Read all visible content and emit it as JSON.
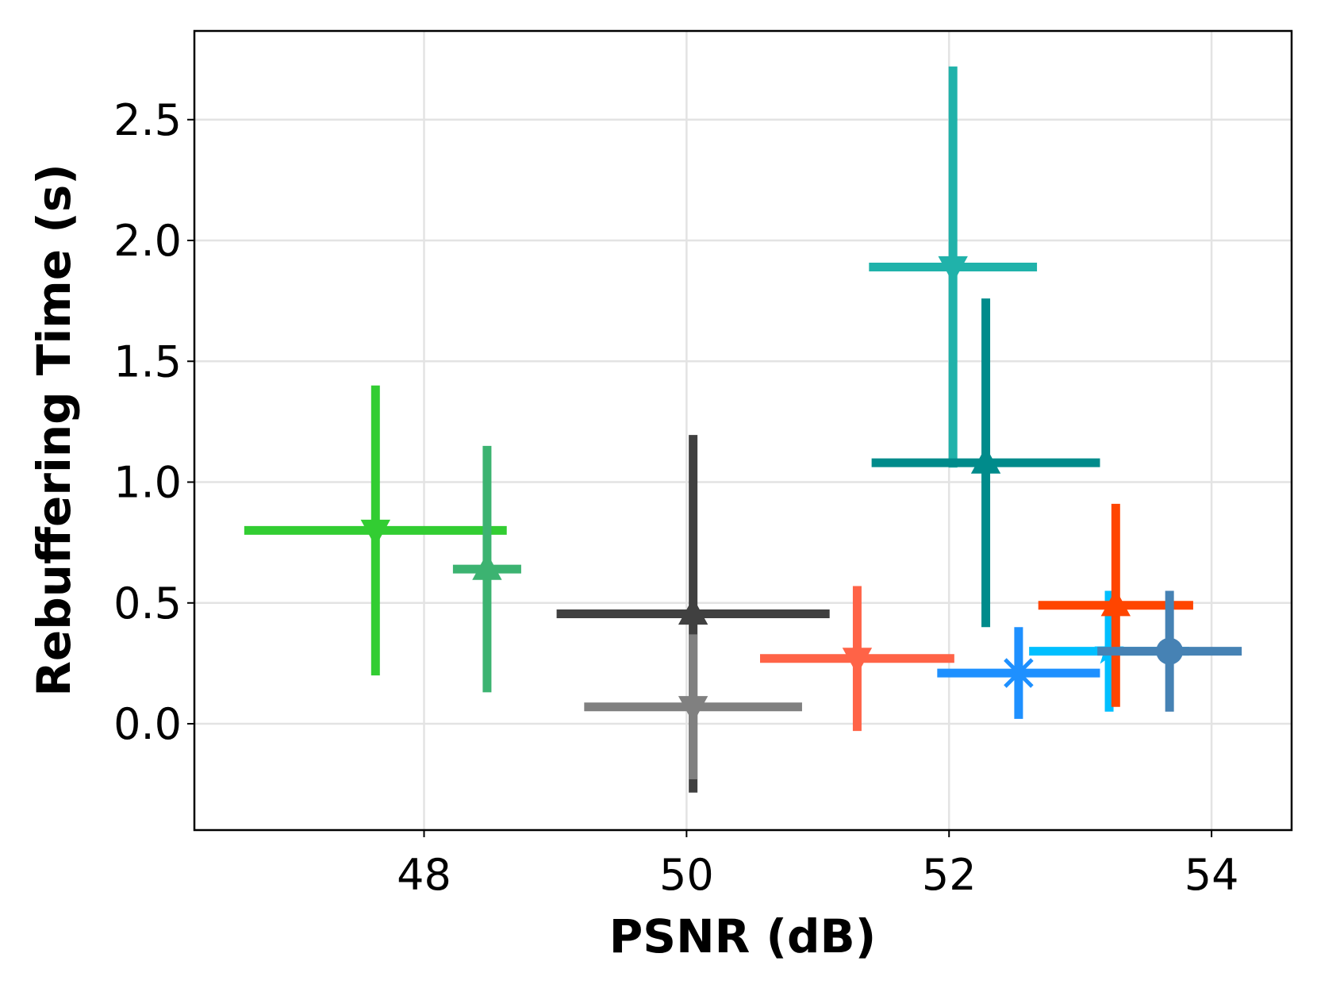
{
  "chart_data": {
    "type": "errorbar",
    "xlabel": "PSNR (dB)",
    "ylabel": "Rebuffering Time (s)",
    "xlim": [
      46.25,
      54.61
    ],
    "ylim": [
      -0.44,
      2.867
    ],
    "xticks": [
      48,
      50,
      52,
      54
    ],
    "yticks": [
      {
        "value": 0,
        "label": "0.0"
      },
      0.5,
      {
        "value": 1,
        "label": "1.0"
      },
      1.5,
      {
        "value": 2,
        "label": "2.0"
      },
      2.5
    ],
    "grid": true,
    "series": [
      {
        "color": "#32cd32",
        "marker": "triangle-down",
        "x": [
          47.63
        ],
        "values": [
          0.8
        ],
        "xerr": [
          1.0
        ],
        "yerr": [
          0.6
        ]
      },
      {
        "color": "#3cb371",
        "marker": "triangle-up",
        "x": [
          48.48
        ],
        "values": [
          0.64
        ],
        "xerr": [
          0.26
        ],
        "yerr": [
          0.51
        ]
      },
      {
        "color": "#404040",
        "marker": "triangle-up",
        "x": [
          50.05
        ],
        "values": [
          0.455
        ],
        "xerr": [
          1.04
        ],
        "yerr": [
          0.74
        ]
      },
      {
        "color": "#808080",
        "marker": "triangle-down",
        "x": [
          50.05
        ],
        "values": [
          0.07
        ],
        "xerr": [
          0.83
        ],
        "yerr": [
          0.3
        ]
      },
      {
        "color": "#ff6347",
        "marker": "triangle-down",
        "x": [
          51.3
        ],
        "values": [
          0.27
        ],
        "xerr": [
          0.74
        ],
        "yerr": [
          0.3
        ]
      },
      {
        "color": "#20b2aa",
        "marker": "triangle-down",
        "x": [
          52.03
        ],
        "values": [
          1.89
        ],
        "xerr": [
          0.64
        ],
        "yerr": [
          0.83
        ]
      },
      {
        "color": "#008b8b",
        "marker": "triangle-up",
        "x": [
          52.28
        ],
        "values": [
          1.08
        ],
        "xerr": [
          0.87
        ],
        "yerr": [
          0.68
        ]
      },
      {
        "color": "#1e90ff",
        "marker": "x",
        "x": [
          52.53
        ],
        "values": [
          0.21
        ],
        "xerr": [
          0.62
        ],
        "yerr": [
          0.19
        ]
      },
      {
        "color": "#00bfff",
        "marker": "star",
        "x": [
          53.22
        ],
        "values": [
          0.3
        ],
        "xerr": [
          0.61
        ],
        "yerr": [
          0.25
        ]
      },
      {
        "color": "#ff4500",
        "marker": "triangle-up",
        "x": [
          53.27
        ],
        "values": [
          0.49
        ],
        "xerr": [
          0.59
        ],
        "yerr": [
          0.42
        ]
      },
      {
        "color": "#4682b4",
        "marker": "circle",
        "x": [
          53.68
        ],
        "values": [
          0.3
        ],
        "xerr": [
          0.55
        ],
        "yerr": [
          0.25
        ]
      }
    ]
  }
}
